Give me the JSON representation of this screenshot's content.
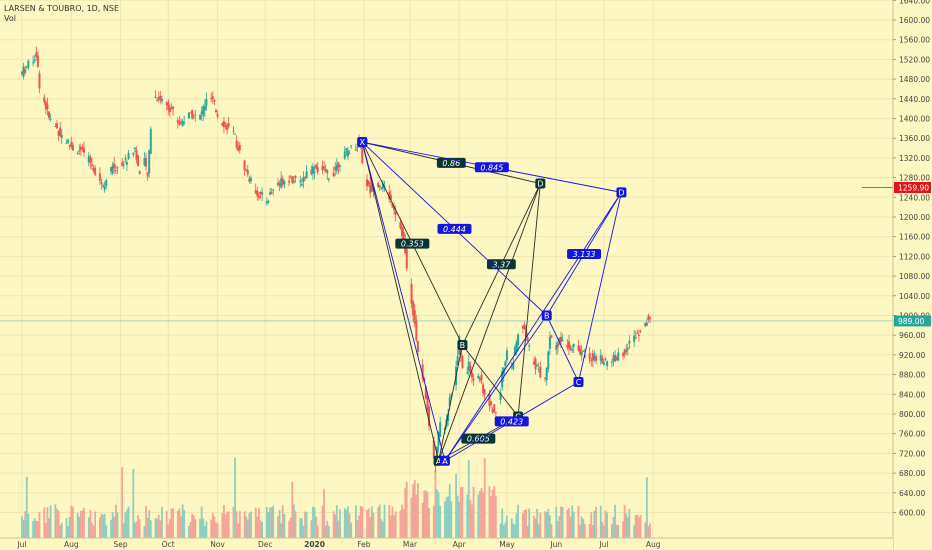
{
  "header": {
    "symbol_line": "LARSEN & TOUBRO, 1D, NSE",
    "indicator": "Vol"
  },
  "chart_data": {
    "type": "candlestick",
    "y_ticks": [
      600,
      640,
      680,
      720,
      760,
      800,
      840,
      880,
      920,
      960,
      1000,
      1040,
      1080,
      1120,
      1160,
      1200,
      1240,
      1280,
      1320,
      1360,
      1400,
      1440,
      1480,
      1520,
      1560,
      1600,
      1640
    ],
    "x_ticks": [
      {
        "label": "Jul",
        "t": 0
      },
      {
        "label": "Aug",
        "t": 31
      },
      {
        "label": "Sep",
        "t": 62
      },
      {
        "label": "Oct",
        "t": 92
      },
      {
        "label": "Nov",
        "t": 123
      },
      {
        "label": "Dec",
        "t": 153
      },
      {
        "label": "2020",
        "t": 184
      },
      {
        "label": "Feb",
        "t": 215
      },
      {
        "label": "Mar",
        "t": 244
      },
      {
        "label": "Apr",
        "t": 275
      },
      {
        "label": "May",
        "t": 305
      },
      {
        "label": "Jun",
        "t": 336
      },
      {
        "label": "Jul",
        "t": 366
      },
      {
        "label": "Aug",
        "t": 397
      }
    ],
    "price_path": [
      [
        0,
        1490
      ],
      [
        6,
        1512
      ],
      [
        10,
        1530
      ],
      [
        12,
        1470
      ],
      [
        18,
        1400
      ],
      [
        25,
        1370
      ],
      [
        33,
        1340
      ],
      [
        40,
        1330
      ],
      [
        48,
        1290
      ],
      [
        52,
        1265
      ],
      [
        58,
        1300
      ],
      [
        65,
        1310
      ],
      [
        72,
        1340
      ],
      [
        75,
        1285
      ],
      [
        78,
        1310
      ],
      [
        80,
        1280
      ],
      [
        83,
        1440
      ],
      [
        86,
        1445
      ],
      [
        90,
        1435
      ],
      [
        95,
        1420
      ],
      [
        100,
        1390
      ],
      [
        104,
        1400
      ],
      [
        108,
        1410
      ],
      [
        112,
        1395
      ],
      [
        116,
        1430
      ],
      [
        120,
        1440
      ],
      [
        125,
        1400
      ],
      [
        130,
        1385
      ],
      [
        135,
        1360
      ],
      [
        140,
        1310
      ],
      [
        145,
        1270
      ],
      [
        150,
        1245
      ],
      [
        155,
        1235
      ],
      [
        160,
        1260
      ],
      [
        165,
        1275
      ],
      [
        170,
        1280
      ],
      [
        175,
        1265
      ],
      [
        180,
        1290
      ],
      [
        185,
        1300
      ],
      [
        190,
        1295
      ],
      [
        195,
        1280
      ],
      [
        200,
        1310
      ],
      [
        205,
        1330
      ],
      [
        210,
        1345
      ],
      [
        214,
        1350
      ],
      [
        216,
        1280
      ],
      [
        220,
        1255
      ],
      [
        225,
        1270
      ],
      [
        230,
        1255
      ],
      [
        235,
        1220
      ],
      [
        240,
        1170
      ],
      [
        245,
        1060
      ],
      [
        250,
        930
      ],
      [
        255,
        840
      ],
      [
        258,
        755
      ],
      [
        261,
        700
      ],
      [
        264,
        790
      ],
      [
        267,
        770
      ],
      [
        270,
        830
      ],
      [
        273,
        860
      ],
      [
        276,
        950
      ],
      [
        279,
        870
      ],
      [
        282,
        900
      ],
      [
        285,
        860
      ],
      [
        288,
        880
      ],
      [
        291,
        850
      ],
      [
        294,
        830
      ],
      [
        297,
        810
      ],
      [
        300,
        790
      ],
      [
        303,
        880
      ],
      [
        306,
        930
      ],
      [
        309,
        900
      ],
      [
        312,
        940
      ],
      [
        315,
        985
      ],
      [
        318,
        955
      ],
      [
        321,
        920
      ],
      [
        324,
        900
      ],
      [
        327,
        880
      ],
      [
        330,
        870
      ],
      [
        333,
        960
      ],
      [
        336,
        940
      ],
      [
        340,
        950
      ],
      [
        345,
        940
      ],
      [
        350,
        930
      ],
      [
        355,
        920
      ],
      [
        360,
        915
      ],
      [
        365,
        910
      ],
      [
        370,
        905
      ],
      [
        375,
        915
      ],
      [
        380,
        930
      ],
      [
        385,
        950
      ],
      [
        390,
        975
      ],
      [
        395,
        995
      ]
    ],
    "last_price": "989.00",
    "target_level": "1259.90",
    "target_value": 1259.9,
    "patterns": [
      {
        "name": "pattern-1",
        "color": "#2c2c2c",
        "points": [
          {
            "label": "X",
            "t": 214,
            "v": 1352
          },
          {
            "label": "A",
            "t": 262,
            "v": 705
          },
          {
            "label": "B",
            "t": 277,
            "v": 940
          },
          {
            "label": "C",
            "t": 312,
            "v": 795
          },
          {
            "label": "D",
            "t": 326,
            "v": 1268
          }
        ],
        "ratios": [
          {
            "text": "0.353",
            "from": 0,
            "to": 2
          },
          {
            "text": "0.605",
            "from": 1,
            "to": 3
          },
          {
            "text": "3.37",
            "from": 2,
            "to": 4
          },
          {
            "text": "0.86",
            "from": 0,
            "to": 4
          }
        ]
      },
      {
        "name": "pattern-2",
        "color": "#1515e0",
        "points": [
          {
            "label": "X",
            "t": 214,
            "v": 1352
          },
          {
            "label": "A",
            "t": 266,
            "v": 705
          },
          {
            "label": "B",
            "t": 330,
            "v": 1000
          },
          {
            "label": "C",
            "t": 350,
            "v": 865
          },
          {
            "label": "D",
            "t": 377,
            "v": 1250
          }
        ],
        "ratios": [
          {
            "text": "0.444",
            "from": 0,
            "to": 2
          },
          {
            "text": "0.423",
            "from": 1,
            "to": 3
          },
          {
            "text": "3.133",
            "from": 2,
            "to": 4
          },
          {
            "text": "0.845",
            "from": 0,
            "to": 4
          }
        ]
      }
    ]
  },
  "colors": {
    "up": "#26a69a",
    "down": "#ef5350",
    "target": "#e31515",
    "last": "#26a69a"
  }
}
